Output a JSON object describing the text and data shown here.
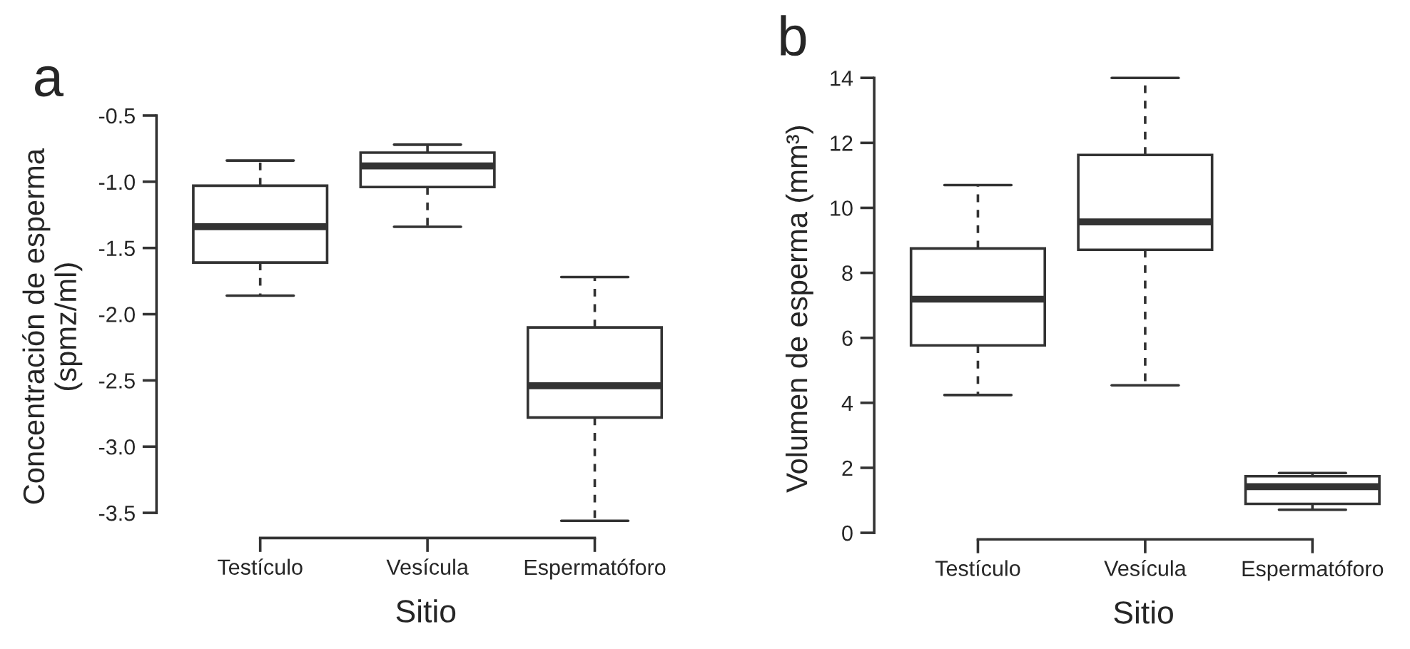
{
  "chart_data": [
    {
      "type": "box",
      "title": "a",
      "xlabel": "Sitio",
      "ylabel": "Concentración de esperma\n(spmz/ml)",
      "categories": [
        "Testículo",
        "Vesícula",
        "Espermatóforo"
      ],
      "boxes": [
        {
          "low": -1.86,
          "q1": -1.61,
          "median": -1.34,
          "q3": -1.03,
          "high": -0.84
        },
        {
          "low": -1.34,
          "q1": -1.04,
          "median": -0.88,
          "q3": -0.78,
          "high": -0.72
        },
        {
          "low": -3.56,
          "q1": -2.78,
          "median": -2.54,
          "q3": -2.1,
          "high": -1.72
        }
      ],
      "ylim": [
        -3.69,
        -0.5
      ],
      "yticks": [
        {
          "value": -3.5,
          "label": "-3.5"
        },
        {
          "value": -3.0,
          "label": "-3.0"
        },
        {
          "value": -2.5,
          "label": "-2.5"
        },
        {
          "value": -2.0,
          "label": "-2.0"
        },
        {
          "value": -1.5,
          "label": "-1.5"
        },
        {
          "value": -1.0,
          "label": "-1.0"
        },
        {
          "value": -0.5,
          "label": "-0.5"
        }
      ]
    },
    {
      "type": "box",
      "title": "b",
      "xlabel": "Sitio",
      "ylabel": "Volumen de esperma (mm³)",
      "categories": [
        "Testículo",
        "Vesícula",
        "Espermatóforo"
      ],
      "boxes": [
        {
          "low": 4.24,
          "q1": 5.77,
          "median": 7.19,
          "q3": 8.75,
          "high": 10.7
        },
        {
          "low": 4.54,
          "q1": 8.71,
          "median": 9.57,
          "q3": 11.63,
          "high": 14.0
        },
        {
          "low": 0.71,
          "q1": 0.89,
          "median": 1.42,
          "q3": 1.74,
          "high": 1.84
        }
      ],
      "ylim": [
        -0.2,
        14
      ],
      "yticks": [
        0,
        2,
        4,
        6,
        8,
        10,
        12,
        14
      ]
    }
  ]
}
